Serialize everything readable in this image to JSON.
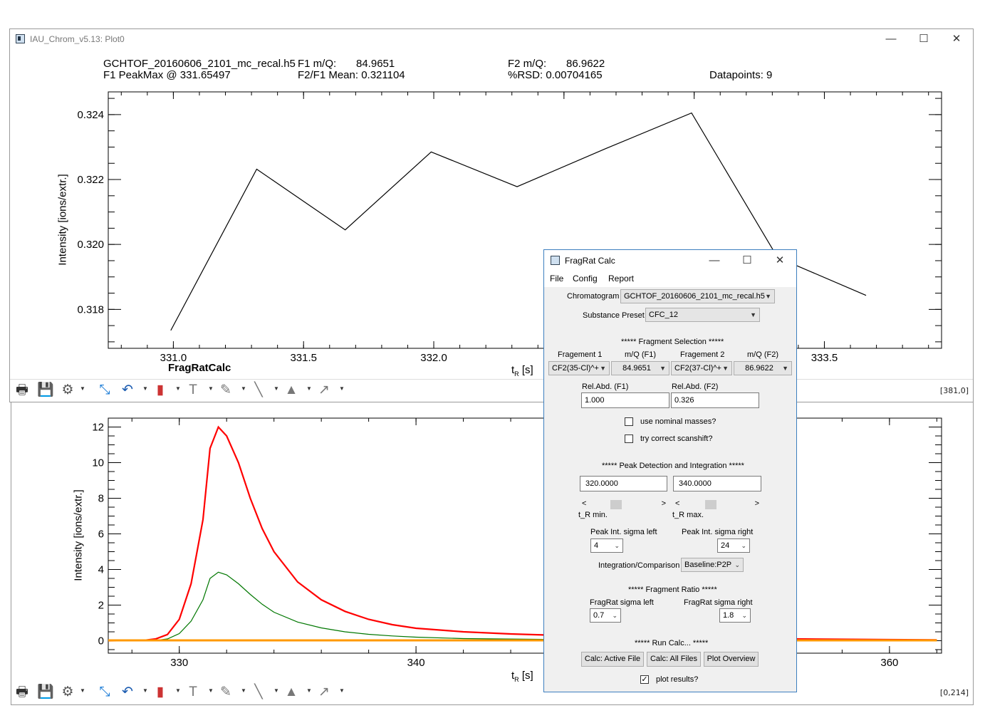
{
  "main_window": {
    "title": "IAU_Chrom_v5.13: Plot0",
    "win_min": "—",
    "win_max": "☐",
    "win_close": "✕"
  },
  "top_plot": {
    "filename": "GCHTOF_20160606_2101_mc_recal.h5",
    "f1_label": "F1 m/Q:",
    "f1_value": "84.9651",
    "f2_label": "F2 m/Q:",
    "f2_value": "86.9622",
    "peakmax": "F1 PeakMax @ 331.65497",
    "mean": "F2/F1 Mean: 0.321104",
    "rsd": "%RSD: 0.00704165",
    "datapoints": "Datapoints: 9",
    "plot_title": "FragRatCalc",
    "ylabel": "Intensity [ions/extr.]",
    "xlabel_main": "t",
    "xlabel_sub": "R",
    "xlabel_unit": " [s]",
    "coord": "[381,0]"
  },
  "bottom_plot": {
    "ylabel": "Intensity [ions/extr.]",
    "xlabel_main": "t",
    "xlabel_sub": "R",
    "xlabel_unit": " [s]",
    "coord": "[0,214]"
  },
  "icons": [
    "print-icon",
    "save-icon",
    "gear-icon",
    "fit-icon",
    "undo-icon",
    "chart-icon",
    "text-icon",
    "path-icon",
    "line-icon",
    "triangle-icon",
    "arrow-icon"
  ],
  "chart_data": [
    {
      "type": "line",
      "title": "FragRatCalc",
      "xlabel": "tR [s]",
      "ylabel": "Intensity [ions/extr.]",
      "xlim": [
        330.75,
        333.95
      ],
      "ylim": [
        0.3168,
        0.3247
      ],
      "xticks": [
        331.0,
        331.5,
        332.0,
        332.5,
        333.0,
        333.5
      ],
      "xtick_labels": [
        "331.0",
        "331.5",
        "332.0",
        "",
        "",
        "333.5"
      ],
      "yticks": [
        0.318,
        0.32,
        0.322,
        0.324
      ],
      "ytick_labels": [
        "0.318",
        "0.320",
        "0.322",
        "0.324"
      ],
      "series": [
        {
          "color": "#000000",
          "x": [
            330.99,
            331.32,
            331.66,
            331.99,
            332.32,
            332.66,
            332.99,
            333.32,
            333.66
          ],
          "y": [
            0.31735,
            0.32232,
            0.32045,
            0.32285,
            0.32178,
            0.32295,
            0.32405,
            0.3196,
            0.31843
          ]
        }
      ]
    },
    {
      "type": "line",
      "xlabel": "tR [s]",
      "ylabel": "Intensity [ions/extr.]",
      "xlim": [
        327,
        362.2
      ],
      "ylim": [
        -0.7,
        12.5
      ],
      "xticks": [
        330,
        340,
        350,
        360
      ],
      "xtick_labels": [
        "330",
        "340",
        "",
        "360"
      ],
      "yticks": [
        0,
        2,
        4,
        6,
        8,
        10,
        12
      ],
      "ytick_labels": [
        "0",
        "2",
        "4",
        "6",
        "8",
        "10",
        "12"
      ],
      "series": [
        {
          "color": "#ff0000",
          "x": [
            327,
            328.5,
            329,
            329.5,
            330,
            330.5,
            331,
            331.3,
            331.65,
            332,
            332.5,
            333,
            333.5,
            334,
            335,
            336,
            337,
            338,
            339,
            340,
            342,
            344,
            346,
            348,
            350,
            352,
            356,
            360,
            362
          ],
          "y": [
            0,
            0.02,
            0.1,
            0.35,
            1.2,
            3.2,
            6.8,
            10.8,
            12.0,
            11.5,
            10.0,
            8.0,
            6.3,
            5.0,
            3.3,
            2.3,
            1.65,
            1.2,
            0.9,
            0.7,
            0.5,
            0.38,
            0.3,
            0.24,
            0.2,
            0.16,
            0.1,
            0.06,
            0.05
          ]
        },
        {
          "color": "#007700",
          "x": [
            327,
            329,
            329.5,
            330,
            330.5,
            331,
            331.3,
            331.65,
            332,
            332.5,
            333,
            333.5,
            334,
            335,
            336,
            337,
            338,
            339,
            340,
            342,
            346,
            350,
            356,
            362
          ],
          "y": [
            0,
            0.02,
            0.1,
            0.4,
            1.1,
            2.3,
            3.5,
            3.85,
            3.7,
            3.2,
            2.6,
            2.05,
            1.6,
            1.05,
            0.72,
            0.5,
            0.36,
            0.27,
            0.2,
            0.12,
            0.07,
            0.05,
            0.03,
            0.02
          ]
        },
        {
          "color": "#ff9900",
          "x": [
            327,
            362
          ],
          "y": [
            0.02,
            0.02
          ]
        }
      ]
    }
  ],
  "dialog": {
    "title": "FragRat Calc",
    "menu": [
      "File",
      "Config",
      "Report"
    ],
    "chromatogram_label": "Chromatogram",
    "chromatogram_value": "GCHTOF_20160606_2101_mc_recal.h5",
    "preset_label": "Substance Preset",
    "preset_value": "CFC_12",
    "fragment_heading": "***** Fragment Selection *****",
    "frag1_label": "Fragement 1",
    "mq1_label": "m/Q (F1)",
    "frag2_label": "Fragement 2",
    "mq2_label": "m/Q (F2)",
    "frag1_value": "CF2(35-Cl)^+",
    "mq1_value": "84.9651",
    "frag2_value": "CF2(37-Cl)^+",
    "mq2_value": "86.9622",
    "relabd1_label": "Rel.Abd. (F1)",
    "relabd2_label": "Rel.Abd. (F2)",
    "relabd1_value": "1.000",
    "relabd2_value": "0.326",
    "nominal_label": "use nominal masses?",
    "scanshift_label": "try correct scanshift?",
    "peak_heading": "***** Peak Detection and Integration *****",
    "tmin_value": "320.0000",
    "tmax_value": "340.0000",
    "tmin_label": "t_R min.",
    "tmax_label": "t_R max.",
    "sigma_left_label": "Peak Int. sigma left",
    "sigma_right_label": "Peak Int. sigma right",
    "sigma_left_value": "4",
    "sigma_right_value": "24",
    "integration_label": "Integration/Comparison",
    "integration_value": "Baseline:P2P",
    "ratio_heading": "***** Fragment Ratio *****",
    "fr_left_label": "FragRat sigma left",
    "fr_right_label": "FragRat sigma right",
    "fr_left_value": "0.7",
    "fr_right_value": "1.8",
    "run_heading": "***** Run Calc... *****",
    "btn_active": "Calc: Active File",
    "btn_all": "Calc: All Files",
    "btn_overview": "Plot Overview",
    "plot_results_label": "plot results?",
    "check_mark": "✓"
  }
}
